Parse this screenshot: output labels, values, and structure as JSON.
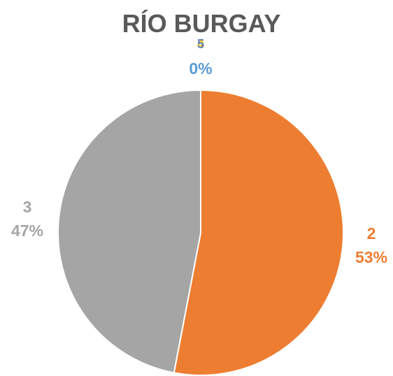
{
  "chart_data": {
    "type": "pie",
    "title": "RÍO BURGAY",
    "title_color": "#595959",
    "categories": [
      "1",
      "2",
      "3",
      "4",
      "5"
    ],
    "values": [
      0,
      53,
      47,
      0,
      0
    ],
    "percent_labels": [
      "0%",
      "53%",
      "47%",
      "0%",
      "0%"
    ],
    "colors": [
      "#5B9BD5",
      "#ED7D31",
      "#A5A5A5",
      "#FFC000",
      "#4472C4"
    ],
    "start_angle_deg": 0,
    "direction": "clockwise",
    "legend": "none",
    "data_labels": "category-and-percent"
  }
}
